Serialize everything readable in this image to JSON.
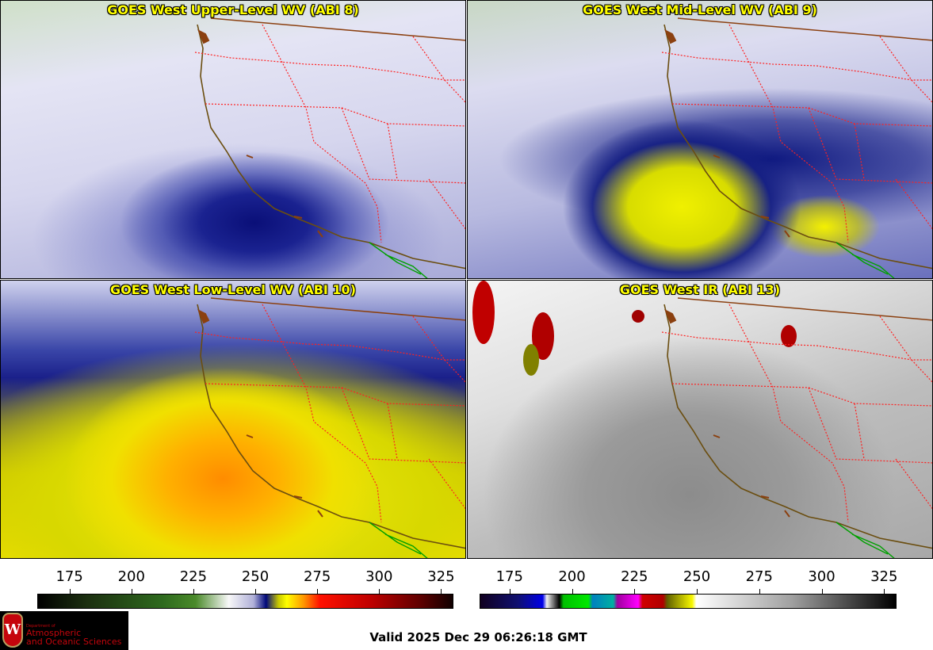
{
  "panels": [
    {
      "title": "GOES West Upper-Level WV (ABI 8)"
    },
    {
      "title": "GOES West Mid-Level WV (ABI 9)"
    },
    {
      "title": "GOES West Low-Level WV (ABI 10)"
    },
    {
      "title": "GOES West IR (ABI 13)"
    }
  ],
  "colorbars": [
    {
      "name": "water-vapor",
      "units": "K",
      "range": [
        162,
        330
      ],
      "ticks": [
        "175",
        "200",
        "225",
        "250",
        "275",
        "300",
        "325"
      ]
    },
    {
      "name": "infrared",
      "units": "K",
      "range": [
        163,
        330
      ],
      "ticks": [
        "175",
        "200",
        "225",
        "250",
        "275",
        "300",
        "325"
      ]
    }
  ],
  "logo": {
    "line1": "Department of",
    "line2": "Atmospheric",
    "line3": "and Oceanic Sciences",
    "emblem": "W"
  },
  "valid_time": "Valid 2025 Dec 29 06:26:18 GMT",
  "colors": {
    "title": "#ffff00",
    "coast": "#6b4e10",
    "state_borders": "#ff0000",
    "mexico_coast": "#00a000"
  }
}
